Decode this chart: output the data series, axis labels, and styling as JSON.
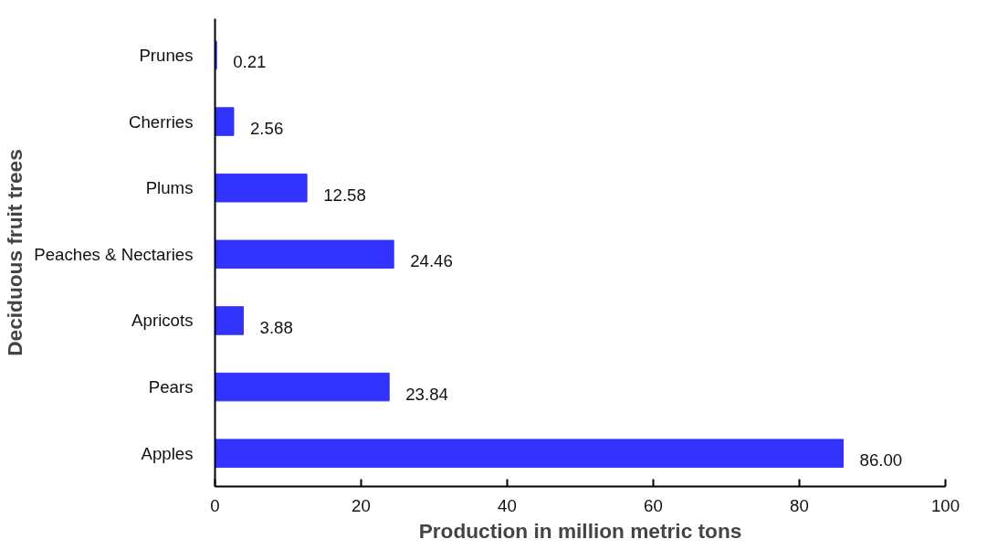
{
  "chart_data": {
    "type": "bar",
    "orientation": "horizontal",
    "xlabel": "Production in million metric tons",
    "ylabel": "Deciduous fruit trees",
    "categories": [
      "Prunes",
      "Cherries",
      "Plums",
      "Peaches & Nectaries",
      "Apricots",
      "Pears",
      "Apples"
    ],
    "values": [
      0.21,
      2.56,
      12.58,
      24.46,
      3.88,
      23.84,
      86.0
    ],
    "value_labels": [
      "0.21",
      "2.56",
      "12.58",
      "24.46",
      "3.88",
      "23.84",
      "86.00"
    ],
    "color": "#3333ff",
    "xlim": [
      0,
      100
    ],
    "xticks": [
      0,
      20,
      40,
      60,
      80,
      100
    ],
    "grid": false
  }
}
